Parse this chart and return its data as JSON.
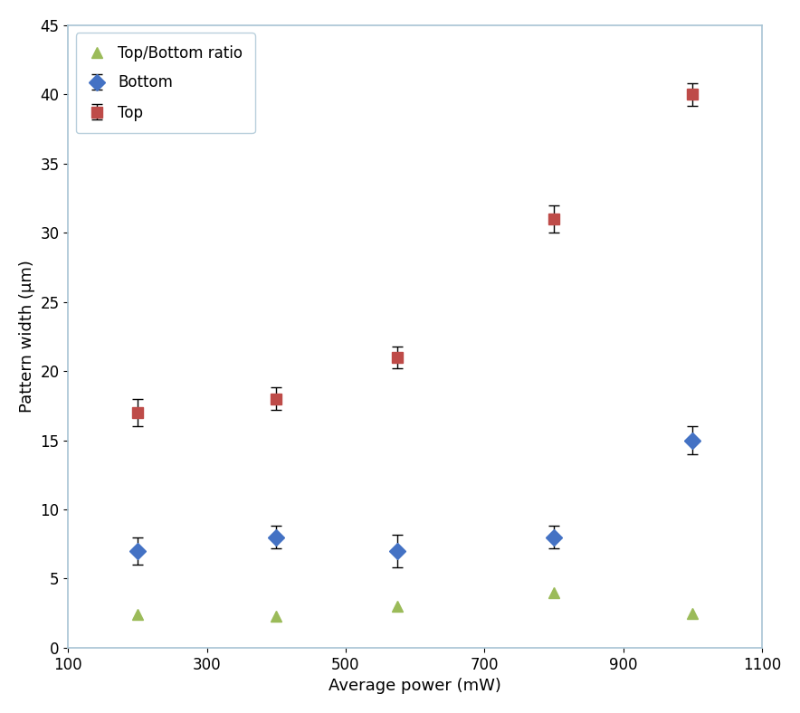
{
  "title": "",
  "xlabel": "Average power (mW)",
  "ylabel": "Pattern width (μm)",
  "xlim": [
    100,
    1100
  ],
  "ylim": [
    0,
    45
  ],
  "xticks": [
    100,
    300,
    500,
    700,
    900,
    1100
  ],
  "yticks": [
    0,
    5,
    10,
    15,
    20,
    25,
    30,
    35,
    40,
    45
  ],
  "bottom": {
    "x": [
      200,
      400,
      575,
      800,
      1000
    ],
    "y": [
      7,
      8,
      7,
      8,
      15
    ],
    "yerr": [
      1.0,
      0.8,
      1.2,
      0.8,
      1.0
    ],
    "color": "#4472C4",
    "marker": "D",
    "label": "Bottom",
    "markersize": 9
  },
  "top": {
    "x": [
      200,
      400,
      575,
      800,
      1000
    ],
    "y": [
      17,
      18,
      21,
      31,
      40
    ],
    "yerr": [
      1.0,
      0.8,
      0.8,
      1.0,
      0.8
    ],
    "color": "#BE4B48",
    "marker": "s",
    "label": "Top",
    "markersize": 9
  },
  "ratio": {
    "x": [
      200,
      400,
      575,
      800,
      1000
    ],
    "y": [
      2.4,
      2.3,
      3.0,
      4.0,
      2.5
    ],
    "color": "#9BBB59",
    "marker": "^",
    "label": "Top/Bottom ratio",
    "markersize": 9
  },
  "legend_loc": "upper left",
  "background_color": "#FFFFFF",
  "plot_bg": "#FFFFFF",
  "spine_color": "#A8C4D4",
  "font_size": 13,
  "tick_label_size": 12
}
